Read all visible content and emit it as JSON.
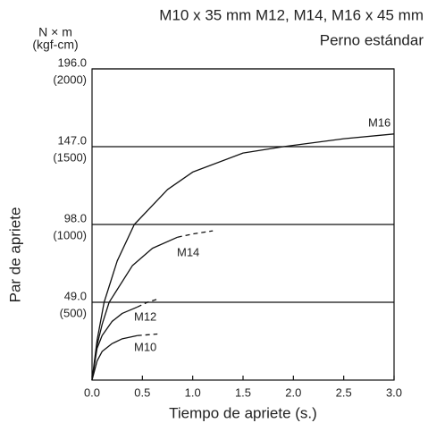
{
  "chart_data": {
    "type": "line",
    "title": "M10 x 35 mm M12, M14, M16 x 45 mm",
    "subtitle": "Perno estándar",
    "y_unit": "N × m",
    "y2_unit": "(kgf-cm)",
    "ylabel": "Par de apriete",
    "xlabel": "Tiempo de apriete (s.)",
    "xlim": [
      0,
      3
    ],
    "xticks": [
      {
        "value": 0,
        "label": "0.0"
      },
      0.5,
      {
        "value": 1,
        "label": "1.0"
      },
      1.5,
      {
        "value": 2,
        "label": "2.0"
      },
      2.5,
      {
        "value": 3,
        "label": "3.0"
      }
    ],
    "ylim": [
      0,
      196
    ],
    "yticks": [
      {
        "value": 49,
        "label": "49.0"
      },
      {
        "value": 98,
        "label": "98.0"
      },
      {
        "value": 147,
        "label": "147.0"
      },
      {
        "value": 196,
        "label": "196.0"
      }
    ],
    "y2lim": [
      0,
      2000
    ],
    "y2ticks": [
      {
        "value": 500,
        "label": "(500)"
      },
      {
        "value": 1000,
        "label": "(1000)"
      },
      {
        "value": 1500,
        "label": "(1500)"
      },
      {
        "value": 2000,
        "label": "(2000)"
      }
    ],
    "grid": true,
    "color": "#111111",
    "series": [
      {
        "name": "M16",
        "segments": [
          {
            "style": "solid",
            "x": [
              0,
              0.05,
              0.12,
              0.25,
              0.42,
              0.75,
              1.0,
              1.5,
              1.9,
              2.5,
              3.0
            ],
            "values": [
              0,
              25,
              49,
              75,
              98,
              120,
              131,
              143,
              147,
              152,
              155
            ]
          }
        ]
      },
      {
        "name": "M14",
        "segments": [
          {
            "style": "solid",
            "x": [
              0,
              0.05,
              0.1,
              0.17,
              0.2,
              0.4,
              0.6,
              0.85
            ],
            "values": [
              0,
              22,
              35,
              49,
              52,
              72,
              83,
              90
            ]
          },
          {
            "style": "dashed",
            "x": [
              0.85,
              1.0,
              1.2
            ],
            "values": [
              90,
              92,
              94
            ]
          }
        ]
      },
      {
        "name": "M12",
        "segments": [
          {
            "style": "solid",
            "x": [
              0,
              0.05,
              0.1,
              0.2,
              0.3,
              0.45
            ],
            "values": [
              0,
              20,
              28,
              37,
              42,
              46
            ]
          },
          {
            "style": "dashed",
            "x": [
              0.45,
              0.55,
              0.65
            ],
            "values": [
              46,
              49,
              51
            ]
          }
        ]
      },
      {
        "name": "M10",
        "segments": [
          {
            "style": "solid",
            "x": [
              0,
              0.05,
              0.1,
              0.2,
              0.3,
              0.45
            ],
            "values": [
              0,
              12,
              18,
              23,
              26,
              28
            ]
          },
          {
            "style": "dashed",
            "x": [
              0.45,
              0.65
            ],
            "values": [
              28,
              29
            ]
          }
        ]
      }
    ]
  }
}
